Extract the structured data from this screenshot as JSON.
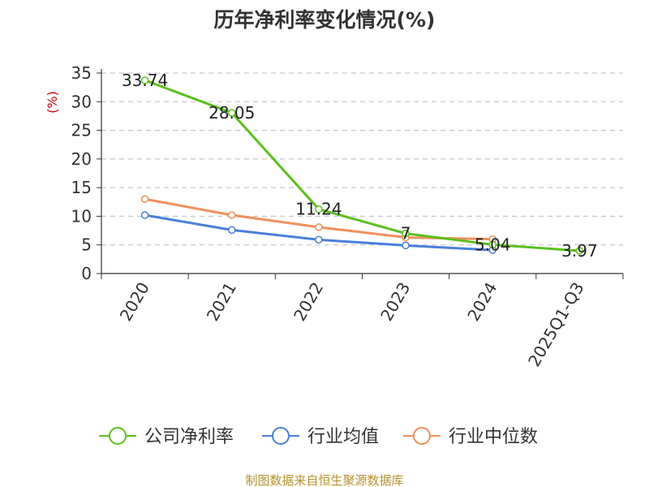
{
  "chart_data": {
    "type": "line",
    "title": "历年净利率变化情况(%)",
    "ylabel": "(%)",
    "categories": [
      "2020",
      "2021",
      "2022",
      "2023",
      "2024",
      "2025Q1-Q3"
    ],
    "ylim": [
      0,
      35
    ],
    "yticks": [
      0,
      5,
      10,
      15,
      20,
      25,
      30,
      35
    ],
    "grid": true,
    "legend_position": "bottom",
    "series": [
      {
        "name": "公司净利率",
        "color": "#5cbf1f",
        "values": [
          33.74,
          28.05,
          11.24,
          7,
          5.04,
          3.97
        ],
        "labels": [
          "33.74",
          "28.05",
          "11.24",
          "7",
          "5.04",
          "3.97"
        ]
      },
      {
        "name": "行业均值",
        "color": "#4a7fd9",
        "values": [
          10.2,
          7.6,
          5.9,
          4.9,
          4.1,
          null
        ]
      },
      {
        "name": "行业中位数",
        "color": "#f0905c",
        "values": [
          13.0,
          10.2,
          8.1,
          6.3,
          6.0,
          null
        ]
      }
    ]
  },
  "source": "制图数据来自恒生聚源数据库"
}
